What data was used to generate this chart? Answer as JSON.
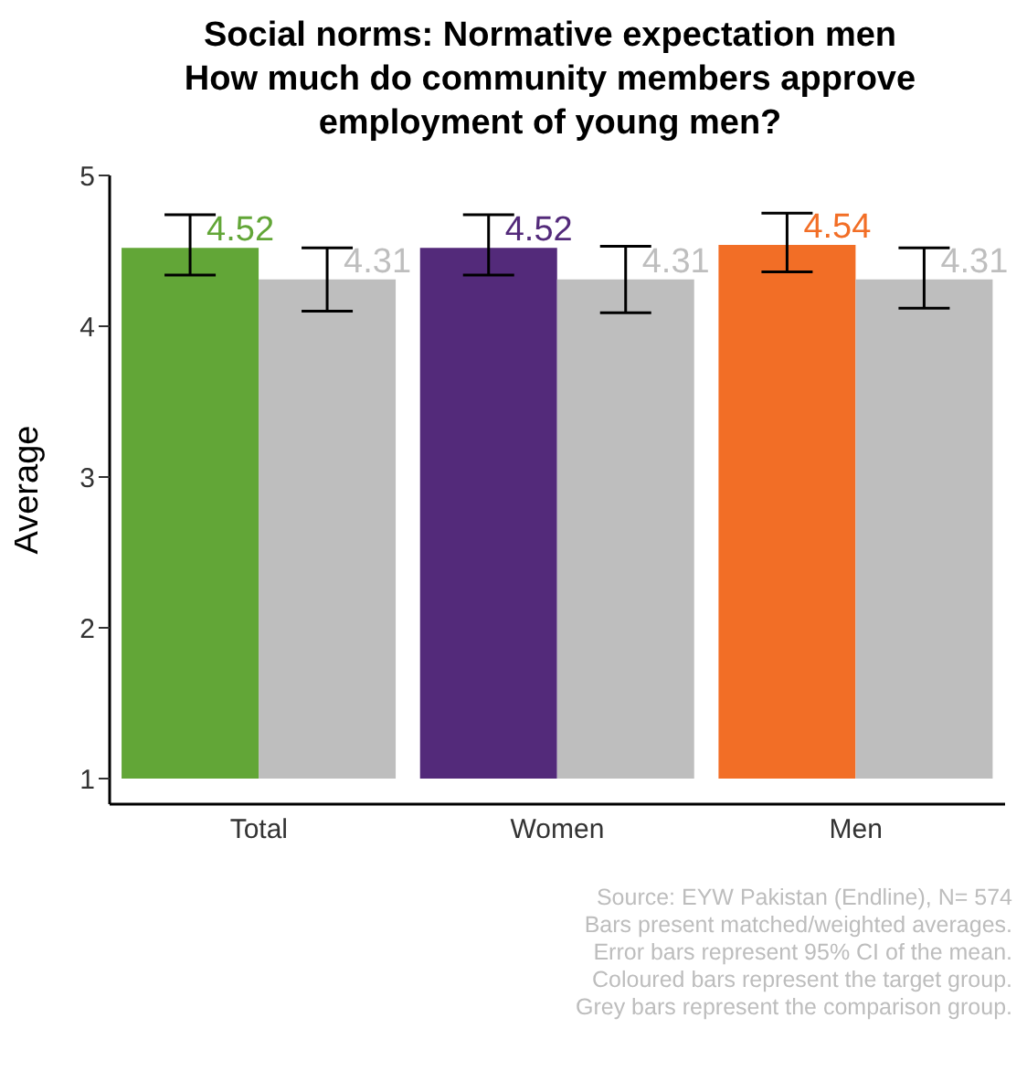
{
  "chart_data": {
    "type": "bar",
    "title": "Social norms: Normative expectation men\nHow much do community members approve\nemployment of young men?",
    "ylabel": "Average",
    "categories": [
      "Total",
      "Women",
      "Men"
    ],
    "series": [
      {
        "colors": [
          "#62a637",
          "#532a7a",
          "#f26e26"
        ],
        "values": [
          4.52,
          4.52,
          4.54
        ],
        "errors": [
          [
            4.34,
            4.74
          ],
          [
            4.34,
            4.74
          ],
          [
            4.36,
            4.75
          ]
        ]
      },
      {
        "color": "#bebebe",
        "values": [
          4.31,
          4.31,
          4.31
        ],
        "errors": [
          [
            4.1,
            4.52
          ],
          [
            4.09,
            4.53
          ],
          [
            4.12,
            4.52
          ]
        ]
      }
    ],
    "ylim": [
      1,
      5
    ],
    "yticks": [
      1,
      2,
      3,
      4,
      5
    ],
    "grid": false,
    "legend": false,
    "data_labels": true,
    "annotations": [
      "Source: EYW Pakistan (Endline), N= 574",
      "Bars present matched/weighted averages.",
      "Error bars represent 95% CI of the mean.",
      "Coloured bars represent the target group.",
      "Grey bars represent the comparison group."
    ]
  }
}
